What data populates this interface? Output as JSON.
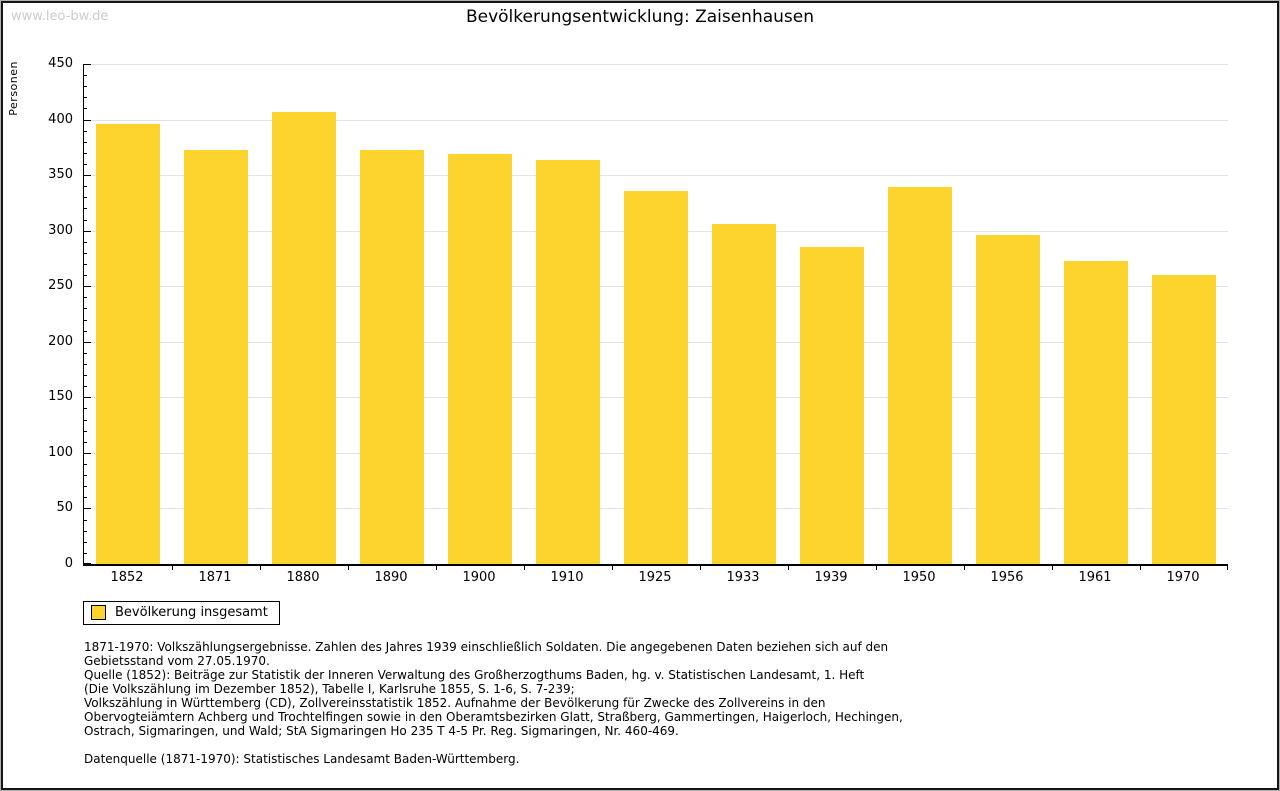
{
  "watermark": "www.leo-bw.de",
  "title": "Bevölkerungsentwicklung: Zaisenhausen",
  "legend": {
    "label": "Bevölkerung insgesamt"
  },
  "colors": {
    "bar": "#fcd42d",
    "grid": "#e2e2e2",
    "axis": "#000000",
    "watermark": "#cccccc"
  },
  "chart_data": {
    "type": "bar",
    "title": "Bevölkerungsentwicklung: Zaisenhausen",
    "categories": [
      "1852",
      "1871",
      "1880",
      "1890",
      "1900",
      "1910",
      "1925",
      "1933",
      "1939",
      "1950",
      "1956",
      "1961",
      "1970"
    ],
    "values": [
      396,
      373,
      407,
      373,
      369,
      364,
      336,
      306,
      285,
      339,
      296,
      273,
      260
    ],
    "series_name": "Bevölkerung insgesamt",
    "xlabel": "",
    "ylabel": "Personen",
    "ylim": [
      0,
      450
    ],
    "y_major_step": 50,
    "y_minor_step": 10,
    "grid": true,
    "legend_position": "bottom-left",
    "bar_color": "#fcd42d"
  },
  "footer": {
    "lines": [
      "1871-1970: Volkszählungsergebnisse. Zahlen des Jahres 1939 einschließlich Soldaten. Die angegebenen Daten beziehen sich auf den",
      "Gebietsstand vom 27.05.1970.",
      "Quelle (1852): Beiträge zur Statistik der Inneren Verwaltung des Großherzogthums Baden, hg. v. Statistischen Landesamt, 1. Heft",
      "(Die Volkszählung im Dezember 1852), Tabelle I, Karlsruhe 1855, S. 1-6, S. 7-239;",
      "Volkszählung in Württemberg (CD), Zollvereinsstatistik 1852. Aufnahme der Bevölkerung für Zwecke des Zollvereins in den",
      "Obervogteiämtern Achberg und Trochtelfingen sowie in den Oberamtsbezirken Glatt, Straßberg, Gammertingen, Haigerloch, Hechingen,",
      "Ostrach, Sigmaringen, und Wald; StA Sigmaringen Ho 235 T 4-5 Pr. Reg. Sigmaringen, Nr. 460-469."
    ],
    "datasource": "Datenquelle (1871-1970): Statistisches Landesamt Baden-Württemberg."
  }
}
